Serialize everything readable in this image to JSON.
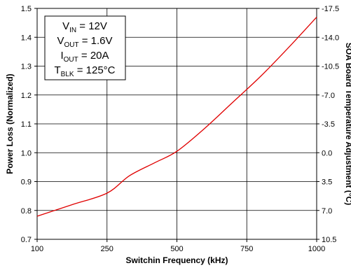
{
  "chart_data": {
    "type": "line",
    "xlabel": "Switchin Frequency (kHz)",
    "ylabel": "Power Loss (Normalized)",
    "y2label": "SOA Board Temperature Adjustment (°C)",
    "x_ticks": [
      "100",
      "250",
      "500",
      "750",
      "1000"
    ],
    "y_ticks": [
      "0.7",
      "0.8",
      "0.9",
      "1.0",
      "1.1",
      "1.2",
      "1.3",
      "1.4",
      "1.5"
    ],
    "y2_ticks": [
      "10.5",
      "7.0",
      "3.5",
      "0.0",
      "-3.5",
      "-7.0",
      "-10.5",
      "-14.0",
      "-17.5"
    ],
    "ylim": [
      0.7,
      1.5
    ],
    "grid": true,
    "series": [
      {
        "color": "#e00000",
        "x": [
          100,
          175,
          250,
          330,
          420,
          500,
          600,
          700,
          800,
          900,
          1000
        ],
        "y": [
          0.78,
          0.82,
          0.86,
          0.92,
          0.965,
          1.005,
          1.085,
          1.175,
          1.265,
          1.365,
          1.47
        ]
      }
    ],
    "annotation": {
      "lines": [
        {
          "main": "V",
          "sub": "IN",
          "rest": " = 12V"
        },
        {
          "main": "V",
          "sub": "OUT",
          "rest": " = 1.6V"
        },
        {
          "main": "I",
          "sub": "OUT",
          "rest": " = 20A"
        },
        {
          "main": "T",
          "sub": "BLK",
          "rest": " = 125°C"
        }
      ]
    }
  }
}
